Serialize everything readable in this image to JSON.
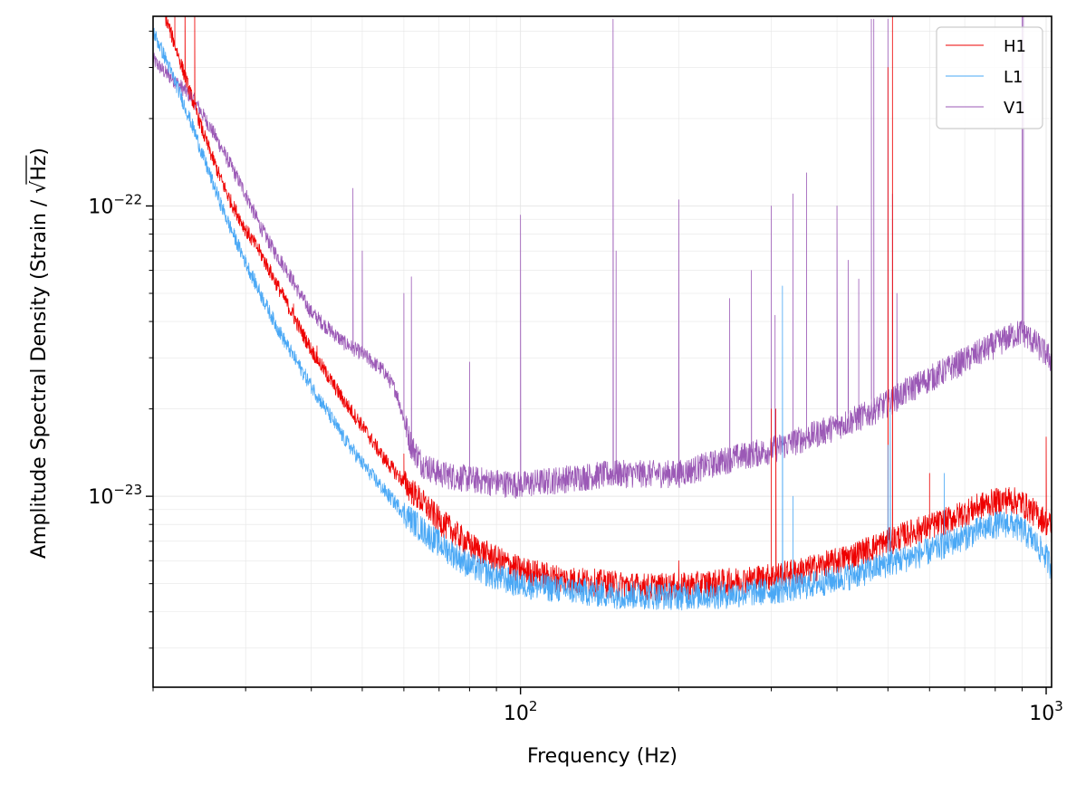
{
  "chart_data": {
    "type": "line",
    "title": "",
    "xlabel": "Frequency (Hz)",
    "ylabel_main": "Amplitude Spectral Density (Strain / ",
    "ylabel_root": "√",
    "ylabel_unit": "Hz",
    "ylabel_close": ")",
    "xscale": "log",
    "yscale": "log",
    "xlim": [
      20,
      1024
    ],
    "ylim": [
      2.2e-24,
      4.5e-22
    ],
    "grid": true,
    "legend_position": "top-right",
    "x_major_ticks": [
      {
        "value": 100,
        "base": "10",
        "exp": "2"
      },
      {
        "value": 1000,
        "base": "10",
        "exp": "3"
      }
    ],
    "y_major_ticks": [
      {
        "value": 1e-22,
        "base": "10",
        "exp": "−22"
      },
      {
        "value": 1e-23,
        "base": "10",
        "exp": "−23"
      }
    ],
    "series": [
      {
        "name": "H1",
        "color": "#ee0000",
        "points": [
          [
            20,
            6.2e-22
          ],
          [
            21,
            4.6e-22
          ],
          [
            22,
            3.6e-22
          ],
          [
            23,
            2.8e-22
          ],
          [
            24,
            2.2e-22
          ],
          [
            25,
            1.75e-22
          ],
          [
            26,
            1.45e-22
          ],
          [
            27,
            1.22e-22
          ],
          [
            28,
            1.05e-22
          ],
          [
            30,
            8.3e-23
          ],
          [
            32,
            6.9e-23
          ],
          [
            34,
            5.6e-23
          ],
          [
            36,
            4.6e-23
          ],
          [
            38,
            3.8e-23
          ],
          [
            40,
            3.2e-23
          ],
          [
            43,
            2.6e-23
          ],
          [
            46,
            2.15e-23
          ],
          [
            50,
            1.75e-23
          ],
          [
            55,
            1.35e-23
          ],
          [
            60,
            1.12e-23
          ],
          [
            65,
            9.6e-24
          ],
          [
            70,
            8.3e-24
          ],
          [
            75,
            7.5e-24
          ],
          [
            80,
            6.8e-24
          ],
          [
            90,
            6.1e-24
          ],
          [
            100,
            5.6e-24
          ],
          [
            120,
            5.2e-24
          ],
          [
            150,
            5e-24
          ],
          [
            170,
            4.9e-24
          ],
          [
            200,
            4.9e-24
          ],
          [
            250,
            5.1e-24
          ],
          [
            300,
            5.3e-24
          ],
          [
            350,
            5.6e-24
          ],
          [
            400,
            6e-24
          ],
          [
            450,
            6.5e-24
          ],
          [
            500,
            7e-24
          ],
          [
            550,
            7.5e-24
          ],
          [
            600,
            7.9e-24
          ],
          [
            650,
            8.3e-24
          ],
          [
            700,
            8.8e-24
          ],
          [
            750,
            9.3e-24
          ],
          [
            800,
            9.6e-24
          ],
          [
            850,
            9.8e-24
          ],
          [
            900,
            9.5e-24
          ],
          [
            950,
            8.8e-24
          ],
          [
            1000,
            8.2e-24
          ],
          [
            1024,
            7.9e-24
          ]
        ],
        "lines": [
          [
            22,
            6e-22
          ],
          [
            23,
            5.5e-22
          ],
          [
            24,
            5e-22
          ],
          [
            31,
            7.5e-23
          ],
          [
            35,
            5e-23
          ],
          [
            37,
            4.6e-23
          ],
          [
            41,
            3.3e-23
          ],
          [
            43,
            2.7e-23
          ],
          [
            45,
            2.4e-23
          ],
          [
            60,
            1.4e-23
          ],
          [
            200,
            6e-24
          ],
          [
            300,
            2e-23
          ],
          [
            306,
            2e-23
          ],
          [
            500,
            3e-22
          ],
          [
            510,
            4.5e-22
          ],
          [
            600,
            1.2e-23
          ],
          [
            1000,
            1.6e-23
          ]
        ]
      },
      {
        "name": "L1",
        "color": "#4aa8f5",
        "points": [
          [
            20,
            4e-22
          ],
          [
            21,
            3.3e-22
          ],
          [
            22,
            2.7e-22
          ],
          [
            23,
            2.2e-22
          ],
          [
            24,
            1.8e-22
          ],
          [
            25,
            1.45e-22
          ],
          [
            26,
            1.2e-22
          ],
          [
            27,
            1e-22
          ],
          [
            28,
            8.5e-23
          ],
          [
            30,
            6.4e-23
          ],
          [
            32,
            5e-23
          ],
          [
            34,
            4e-23
          ],
          [
            36,
            3.3e-23
          ],
          [
            38,
            2.8e-23
          ],
          [
            40,
            2.4e-23
          ],
          [
            43,
            1.95e-23
          ],
          [
            46,
            1.6e-23
          ],
          [
            50,
            1.3e-23
          ],
          [
            55,
            1.05e-23
          ],
          [
            60,
            8.8e-24
          ],
          [
            65,
            7.7e-24
          ],
          [
            70,
            6.9e-24
          ],
          [
            75,
            6.3e-24
          ],
          [
            80,
            5.8e-24
          ],
          [
            90,
            5.3e-24
          ],
          [
            100,
            5e-24
          ],
          [
            120,
            4.8e-24
          ],
          [
            150,
            4.6e-24
          ],
          [
            200,
            4.55e-24
          ],
          [
            250,
            4.6e-24
          ],
          [
            300,
            4.75e-24
          ],
          [
            350,
            4.95e-24
          ],
          [
            400,
            5.2e-24
          ],
          [
            450,
            5.5e-24
          ],
          [
            500,
            5.9e-24
          ],
          [
            550,
            6.2e-24
          ],
          [
            600,
            6.5e-24
          ],
          [
            650,
            6.9e-24
          ],
          [
            700,
            7.3e-24
          ],
          [
            750,
            7.7e-24
          ],
          [
            800,
            8e-24
          ],
          [
            850,
            8.1e-24
          ],
          [
            900,
            7.7e-24
          ],
          [
            950,
            7e-24
          ],
          [
            1000,
            6.2e-24
          ],
          [
            1024,
            5.7e-24
          ]
        ],
        "lines": [
          [
            315,
            5.3e-23
          ],
          [
            330,
            1e-23
          ],
          [
            500,
            1.5e-23
          ],
          [
            505,
            2e-23
          ],
          [
            640,
            1.2e-23
          ]
        ]
      },
      {
        "name": "V1",
        "color": "#9b59b6",
        "points": [
          [
            20,
            3.2e-22
          ],
          [
            21,
            2.9e-22
          ],
          [
            22,
            2.7e-22
          ],
          [
            23,
            2.5e-22
          ],
          [
            24,
            2.3e-22
          ],
          [
            26,
            1.8e-22
          ],
          [
            28,
            1.4e-22
          ],
          [
            30,
            1.1e-22
          ],
          [
            32,
            8.5e-23
          ],
          [
            34,
            7e-23
          ],
          [
            36,
            6e-23
          ],
          [
            38,
            5e-23
          ],
          [
            40,
            4.3e-23
          ],
          [
            43,
            3.8e-23
          ],
          [
            46,
            3.4e-23
          ],
          [
            50,
            3.1e-23
          ],
          [
            55,
            2.7e-23
          ],
          [
            58,
            2.3e-23
          ],
          [
            62,
            1.5e-23
          ],
          [
            65,
            1.3e-23
          ],
          [
            70,
            1.2e-23
          ],
          [
            80,
            1.15e-23
          ],
          [
            90,
            1.12e-23
          ],
          [
            100,
            1.1e-23
          ],
          [
            120,
            1.15e-23
          ],
          [
            150,
            1.2e-23
          ],
          [
            200,
            1.2e-23
          ],
          [
            250,
            1.35e-23
          ],
          [
            300,
            1.45e-23
          ],
          [
            350,
            1.6e-23
          ],
          [
            400,
            1.75e-23
          ],
          [
            450,
            1.9e-23
          ],
          [
            500,
            2.1e-23
          ],
          [
            550,
            2.35e-23
          ],
          [
            600,
            2.55e-23
          ],
          [
            650,
            2.75e-23
          ],
          [
            700,
            2.95e-23
          ],
          [
            750,
            3.15e-23
          ],
          [
            800,
            3.35e-23
          ],
          [
            850,
            3.55e-23
          ],
          [
            900,
            3.7e-23
          ],
          [
            950,
            3.4e-23
          ],
          [
            1000,
            3.1e-23
          ],
          [
            1024,
            2.95e-23
          ]
        ],
        "lines": [
          [
            48,
            1.15e-22
          ],
          [
            50,
            7e-23
          ],
          [
            60,
            5e-23
          ],
          [
            62,
            5.7e-23
          ],
          [
            80,
            2.9e-23
          ],
          [
            100,
            9.3e-23
          ],
          [
            150,
            4.4e-22
          ],
          [
            152,
            7e-23
          ],
          [
            200,
            1.05e-22
          ],
          [
            250,
            4.8e-23
          ],
          [
            275,
            6e-23
          ],
          [
            300,
            1e-22
          ],
          [
            305,
            4.2e-23
          ],
          [
            330,
            1.1e-22
          ],
          [
            350,
            1.3e-22
          ],
          [
            400,
            1e-22
          ],
          [
            420,
            6.5e-23
          ],
          [
            440,
            5.6e-23
          ],
          [
            465,
            4.4e-22
          ],
          [
            470,
            4.4e-22
          ],
          [
            500,
            4.4e-22
          ],
          [
            510,
            1.1e-22
          ],
          [
            520,
            5e-23
          ],
          [
            900,
            4.5e-22
          ],
          [
            905,
            4.5e-22
          ]
        ]
      }
    ]
  }
}
